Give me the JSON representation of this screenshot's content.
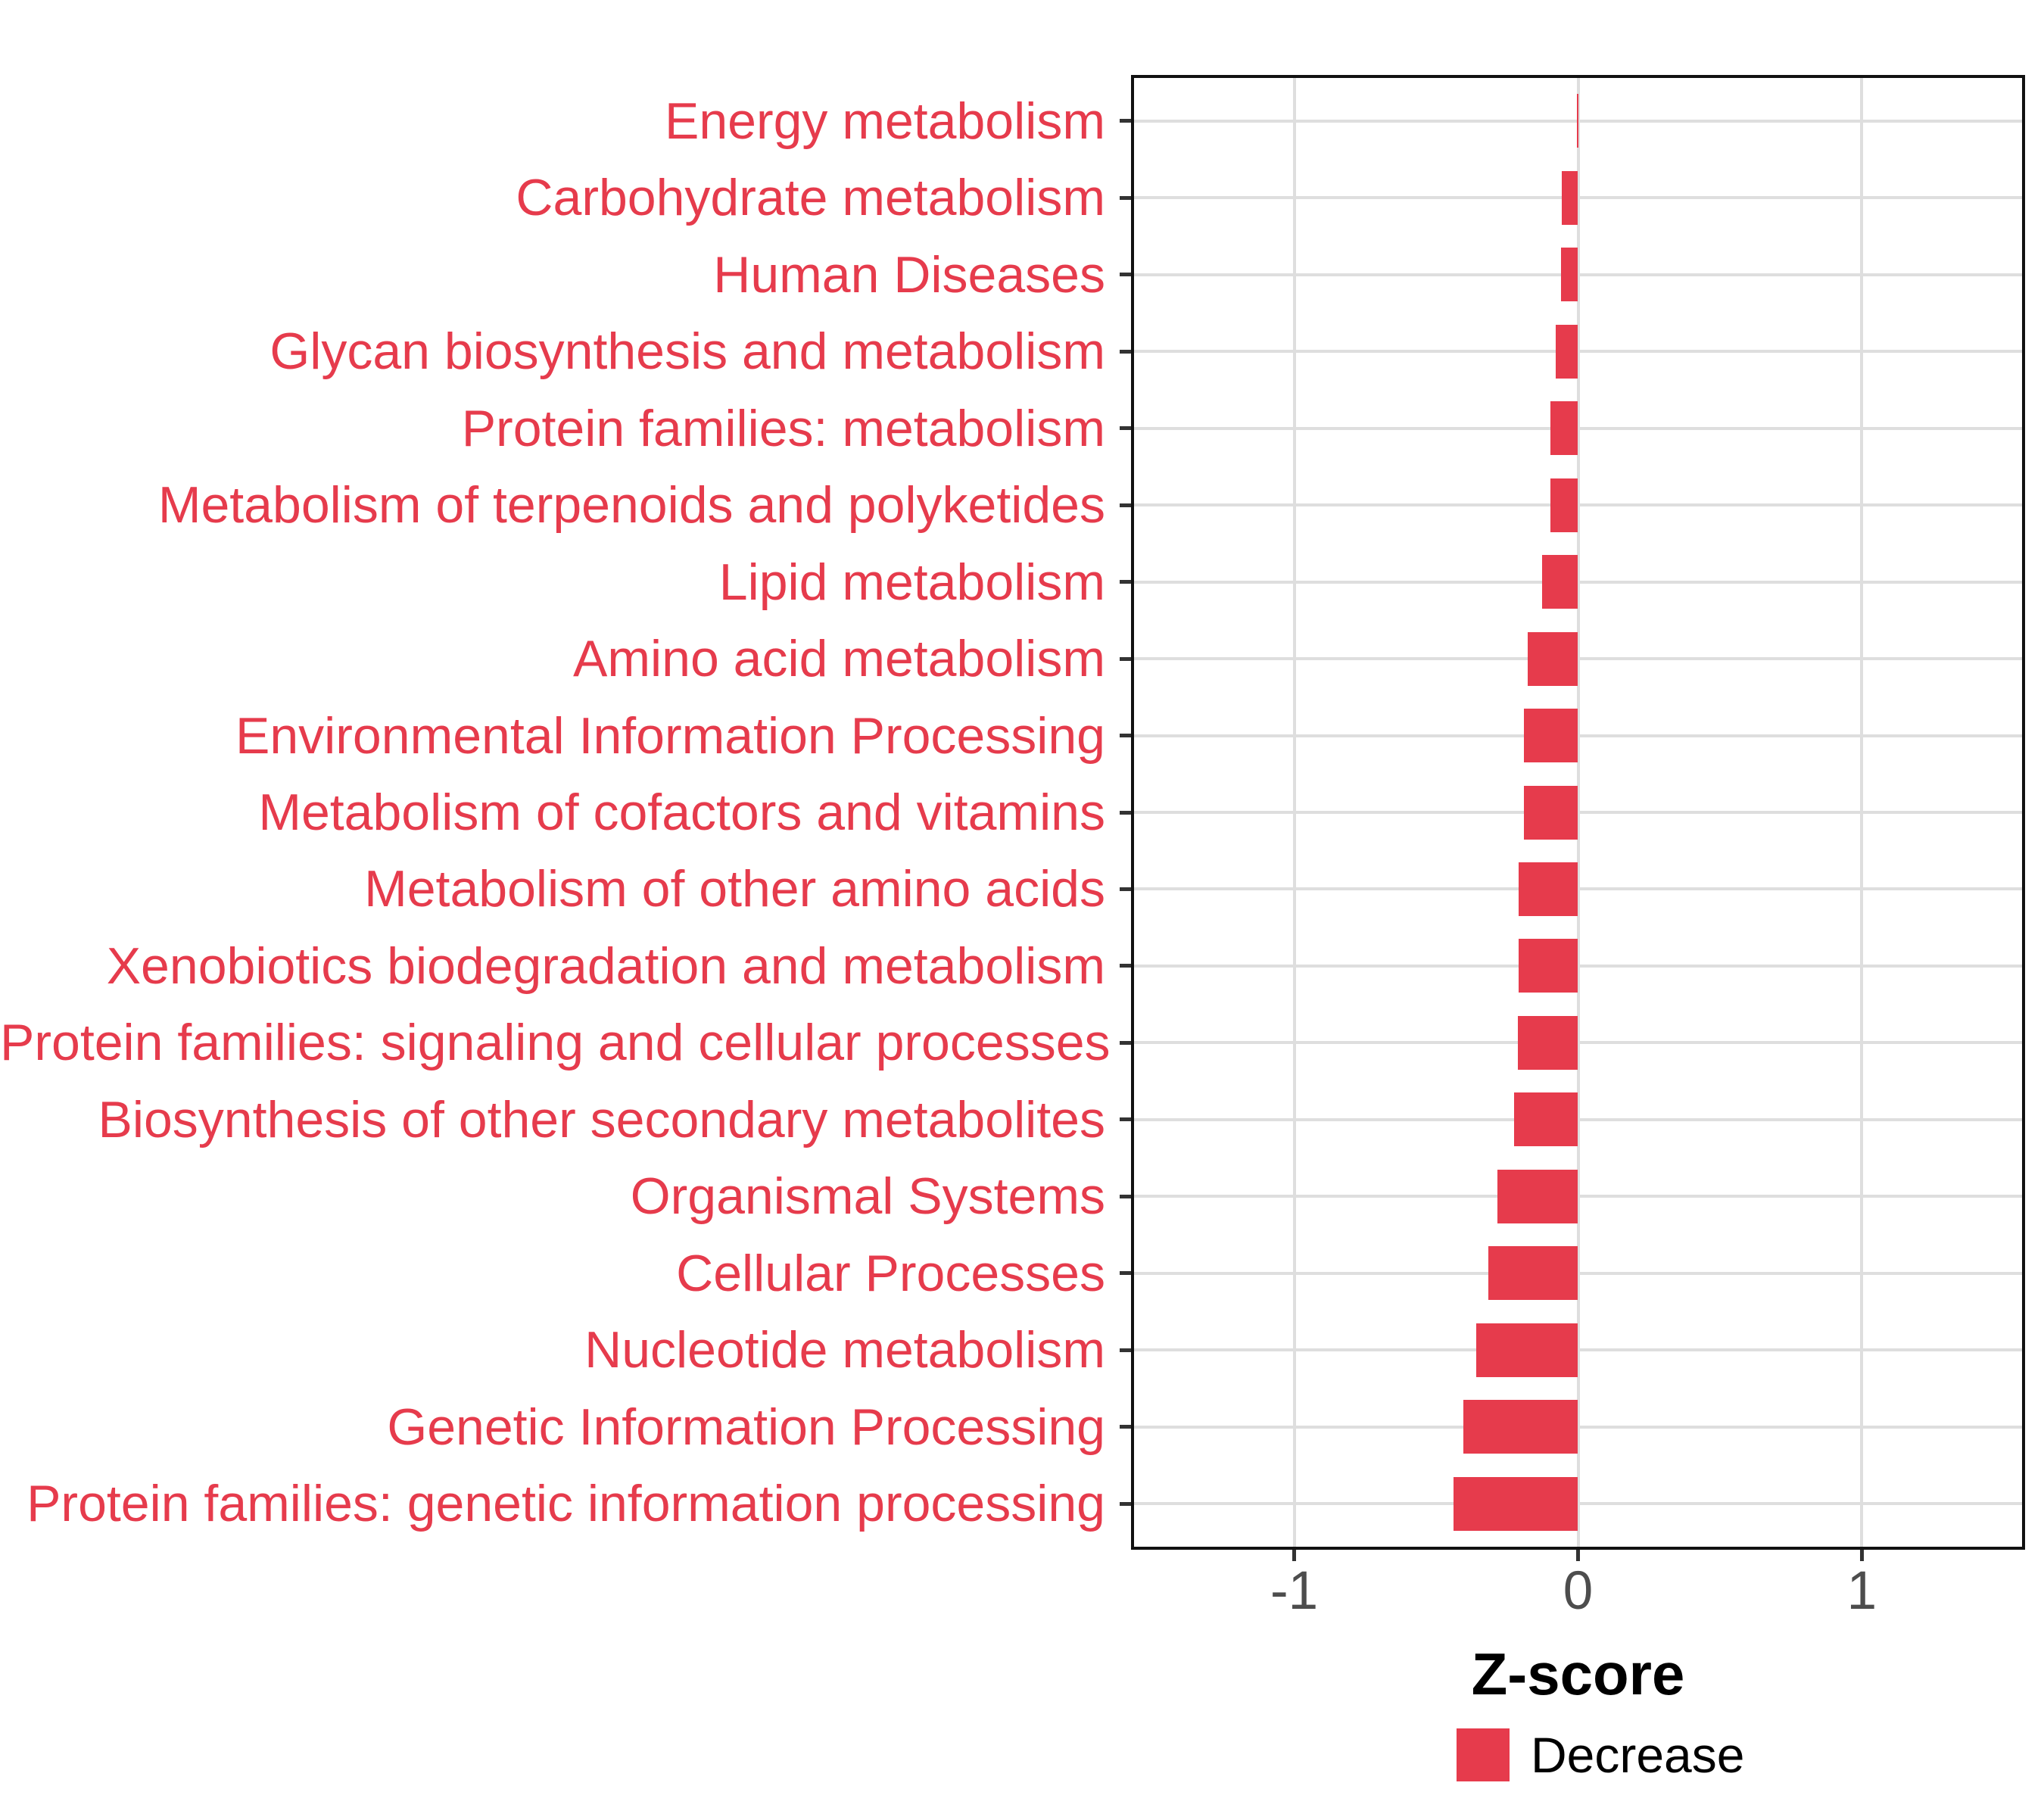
{
  "chart_data": {
    "type": "bar",
    "orientation": "horizontal",
    "title": "",
    "xlabel": "Z-score",
    "ylabel": "",
    "categories": [
      "Energy metabolism",
      "Carbohydrate metabolism",
      "Human Diseases",
      "Glycan biosynthesis and metabolism",
      "Protein families: metabolism",
      "Metabolism of terpenoids and polyketides",
      "Lipid metabolism",
      "Amino acid metabolism",
      "Environmental Information Processing",
      "Metabolism of cofactors and vitamins",
      "Metabolism of other amino acids",
      "Xenobiotics biodegradation and metabolism",
      "Protein families: signaling and cellular processes",
      "Biosynthesis of other secondary metabolites",
      "Organismal Systems",
      "Cellular Processes",
      "Nucleotide metabolism",
      "Genetic Information Processing",
      "Protein families: genetic information processing"
    ],
    "values": [
      -0.005,
      -0.058,
      -0.059,
      -0.078,
      -0.098,
      -0.097,
      -0.126,
      -0.177,
      -0.191,
      -0.192,
      -0.21,
      -0.21,
      -0.213,
      -0.225,
      -0.283,
      -0.317,
      -0.358,
      -0.404,
      -0.438
    ],
    "series_name": "Decrease",
    "xlim": [
      -1.575,
      1.575
    ],
    "x_ticks": [
      {
        "value": -1,
        "label": "-1"
      },
      {
        "value": 0,
        "label": "0"
      },
      {
        "value": 1,
        "label": "1"
      }
    ],
    "grid": "major",
    "legend_position": "bottom",
    "legend": {
      "label": "Decrease"
    }
  },
  "colors": {
    "bar": "#E63B4C",
    "category_label": "#E63B4C",
    "grid": "#DEDEDE",
    "axis_text": "#4D4D4D",
    "tick": "#333333",
    "panel_border": "#111111",
    "legend_text": "#000000",
    "background": "#FFFFFF"
  }
}
